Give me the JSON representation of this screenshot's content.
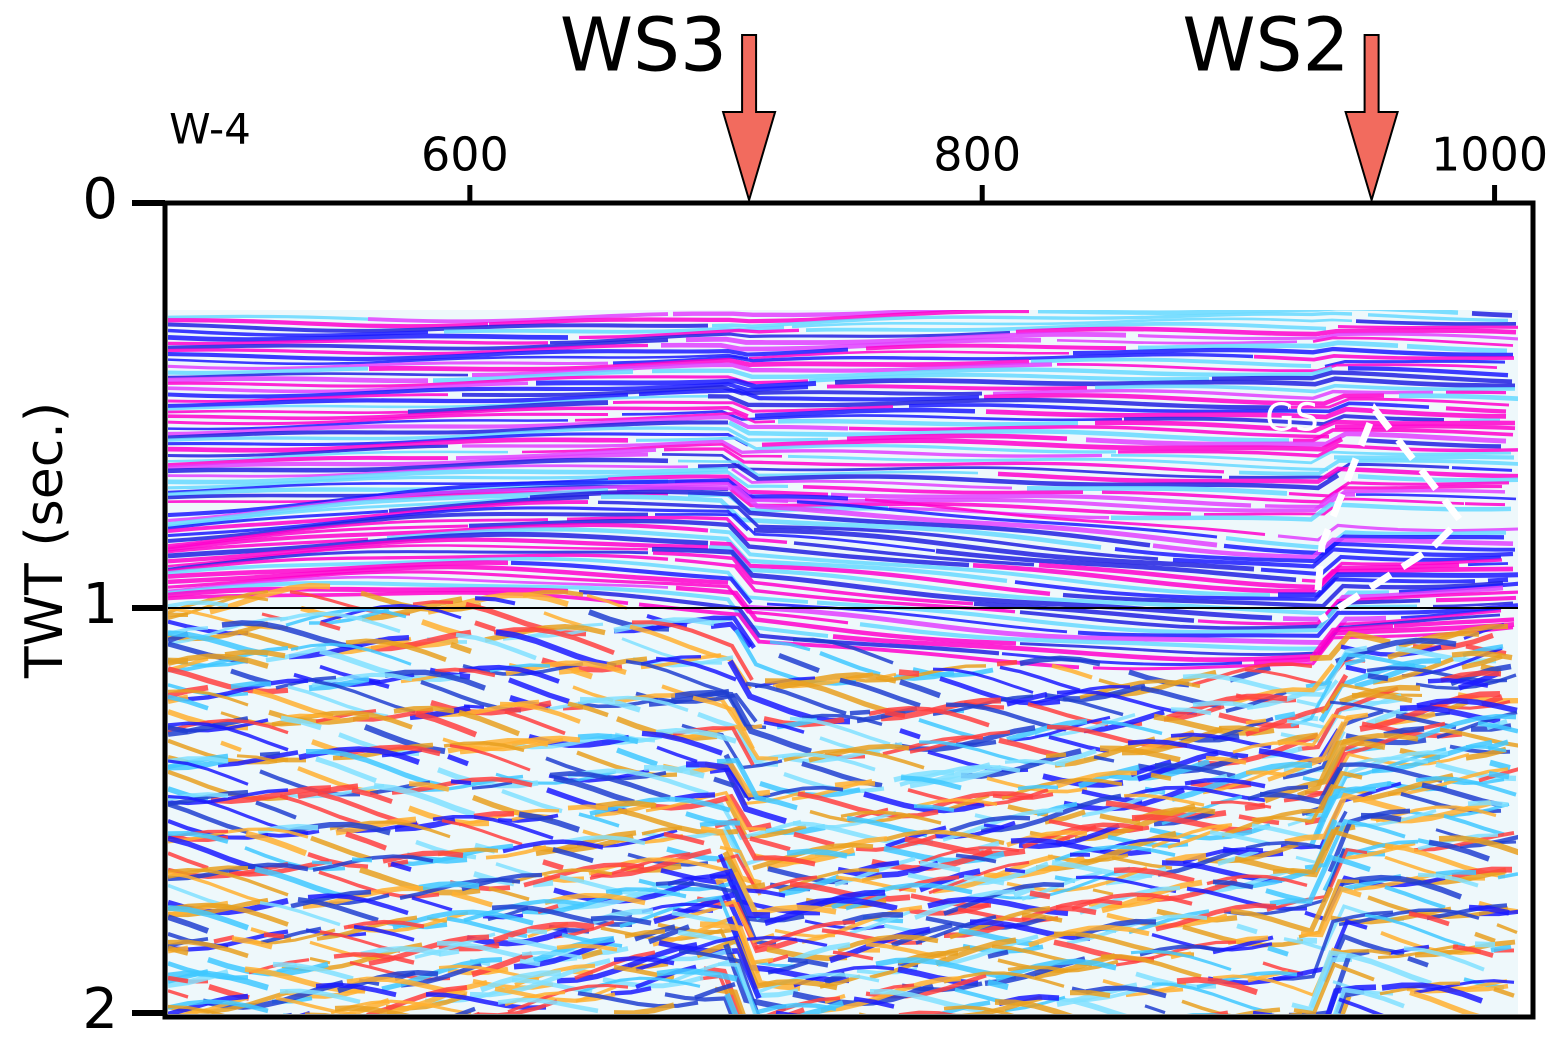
{
  "chart_data": {
    "type": "seismic",
    "line_name": "W-4",
    "y_label": "TWT (sec.)",
    "xlim": [
      481,
      1015
    ],
    "xticks": [
      600,
      800,
      1000
    ],
    "ylim": [
      0,
      2
    ],
    "yticks": [
      0,
      1,
      2
    ],
    "invert_y": true,
    "hline": 1,
    "annotations": [
      {
        "text": "WS3",
        "x": 709,
        "color": "#f26b5e"
      },
      {
        "text": "WS2",
        "x": 952,
        "color": "#f26b5e"
      }
    ],
    "feature_label": "GS"
  }
}
